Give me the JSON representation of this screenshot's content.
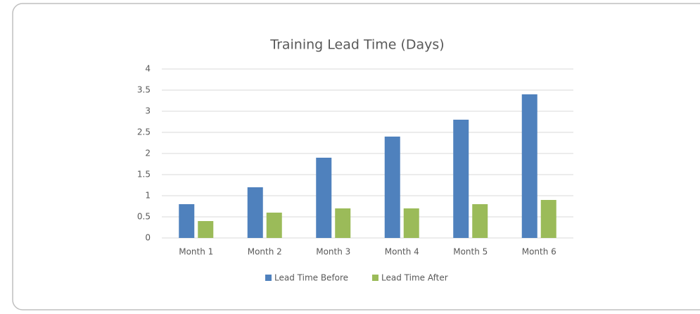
{
  "chart_data": {
    "type": "bar",
    "title": "Training Lead Time (Days)",
    "categories": [
      "Month 1",
      "Month 2",
      "Month 3",
      "Month 4",
      "Month 5",
      "Month 6"
    ],
    "series": [
      {
        "name": "Lead Time Before",
        "color": "#4f81bd",
        "values": [
          0.8,
          1.2,
          1.9,
          2.4,
          2.8,
          3.4
        ]
      },
      {
        "name": "Lead Time After",
        "color": "#9bbb59",
        "values": [
          0.4,
          0.6,
          0.7,
          0.7,
          0.8,
          0.9
        ]
      }
    ],
    "ylim": [
      0,
      4
    ],
    "yticks": [
      0,
      0.5,
      1,
      1.5,
      2,
      2.5,
      3,
      3.5,
      4
    ],
    "grid": true,
    "legend": "bottom"
  }
}
